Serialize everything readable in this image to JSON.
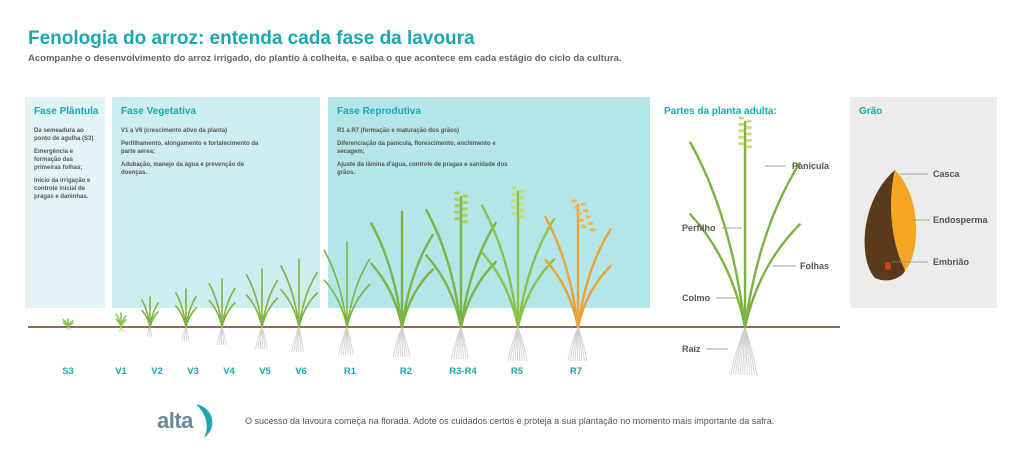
{
  "header": {
    "title": "Fenologia do arroz: entenda cada fase da lavoura",
    "subtitle": "Acompanhe o desenvolvimento do arroz irrigado, do plantio à colheita, e saiba o que acontece em cada estágio do ciclo da cultura."
  },
  "phases": [
    {
      "title": "Fase Plântula",
      "lines": [
        "Da semeadura ao ponto de agulha (S3)",
        "Emergência e formação das primeiras folhas;",
        "Início da irrigação e controle inicial de pragas e daninhas."
      ]
    },
    {
      "title": "Fase Vegetativa",
      "lines": [
        "V1 a V6 (crescimento ativo da planta)",
        "Perfilhamento, alongamento e fortalecimento da parte aérea;",
        "Adubação, manejo da água e prevenção de doenças."
      ]
    },
    {
      "title": "Fase Reprodutiva",
      "lines": [
        "R1 a R7 (formação e maturação dos grãos)",
        "Diferenciação da panícula, florescimento, enchimento e secagem;",
        "Ajuste da lâmina d'água, controle de pragas e sanidade dos grãos."
      ]
    }
  ],
  "plant_parts": {
    "title": "Partes da planta adulta:",
    "labels": [
      "Panícula",
      "Perfilho",
      "Folhas",
      "Colmo",
      "Raiz"
    ]
  },
  "grain": {
    "title": "Grão",
    "labels": [
      "Casca",
      "Endosperma",
      "Embrião"
    ]
  },
  "stages": [
    "S3",
    "V1",
    "V2",
    "V3",
    "V4",
    "V5",
    "V6",
    "R1",
    "R2",
    "R3-R4",
    "R5",
    "R7"
  ],
  "footer": {
    "logo": "alta",
    "text": "O sucesso da lavoura começa na florada. Adote os cuidados certos e proteja a sua plantação no momento mais importante da safra."
  }
}
